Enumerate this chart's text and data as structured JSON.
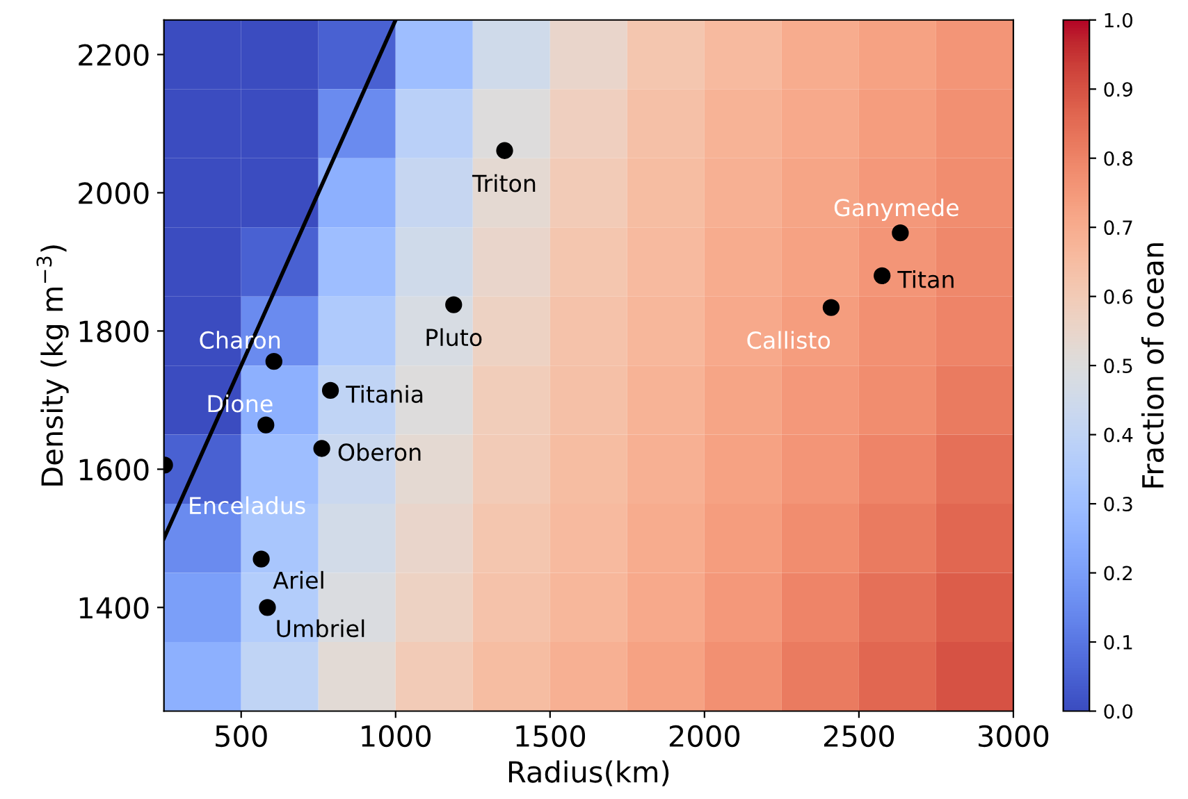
{
  "chart_data": [
    {
      "type": "heatmap",
      "clabel": "Fraction of ocean",
      "clim": [
        0,
        1
      ],
      "cticks": [
        {
          "value": 0,
          "label": "0.0"
        },
        {
          "value": 0.1,
          "label": "0.1"
        },
        {
          "value": 0.2,
          "label": "0.2"
        },
        {
          "value": 0.3,
          "label": "0.3"
        },
        {
          "value": 0.4,
          "label": "0.4"
        },
        {
          "value": 0.5,
          "label": "0.5"
        },
        {
          "value": 0.6,
          "label": "0.6"
        },
        {
          "value": 0.7,
          "label": "0.7"
        },
        {
          "value": 0.8,
          "label": "0.8"
        },
        {
          "value": 0.9,
          "label": "0.9"
        },
        {
          "value": 1,
          "label": "1.0"
        }
      ],
      "categories": [
        null,
        null,
        null,
        null,
        null,
        null,
        null,
        null,
        null,
        null,
        null
      ],
      "y_categories": [
        null,
        null,
        null,
        null,
        null,
        null,
        null,
        null,
        null,
        null
      ],
      "cells": [
        [
          0,
          0,
          0.05,
          0.3,
          0.45,
          0.55,
          0.62,
          0.66,
          0.7,
          0.73,
          0.76
        ],
        [
          0,
          0,
          0.15,
          0.38,
          0.5,
          0.58,
          0.64,
          0.68,
          0.71,
          0.74,
          0.77
        ],
        [
          0,
          0,
          0.25,
          0.42,
          0.53,
          0.6,
          0.65,
          0.69,
          0.72,
          0.75,
          0.78
        ],
        [
          0,
          0.05,
          0.3,
          0.45,
          0.55,
          0.62,
          0.66,
          0.7,
          0.73,
          0.76,
          0.79
        ],
        [
          0,
          0.15,
          0.35,
          0.48,
          0.57,
          0.63,
          0.67,
          0.71,
          0.74,
          0.77,
          0.8
        ],
        [
          0,
          0.25,
          0.4,
          0.5,
          0.59,
          0.64,
          0.68,
          0.72,
          0.75,
          0.78,
          0.82
        ],
        [
          0.05,
          0.3,
          0.43,
          0.53,
          0.6,
          0.65,
          0.69,
          0.73,
          0.76,
          0.8,
          0.84
        ],
        [
          0.15,
          0.33,
          0.46,
          0.55,
          0.62,
          0.66,
          0.7,
          0.74,
          0.78,
          0.82,
          0.86
        ],
        [
          0.2,
          0.36,
          0.49,
          0.57,
          0.63,
          0.67,
          0.71,
          0.75,
          0.8,
          0.84,
          0.88
        ],
        [
          0.25,
          0.4,
          0.52,
          0.6,
          0.65,
          0.69,
          0.73,
          0.77,
          0.82,
          0.86,
          0.9
        ]
      ]
    },
    {
      "type": "scatter",
      "xlabel": "Radius(km)",
      "ylabel": "Density (kg m$^{−3}$)",
      "xlim": [
        250,
        3000
      ],
      "xticks": [
        500,
        1000,
        1500,
        2000,
        2500,
        3000
      ],
      "ylim": [
        1250,
        2250
      ],
      "yticks": [
        1400,
        1600,
        1800,
        2000,
        2200
      ],
      "grid": false,
      "marker": "circle",
      "series": [
        {
          "type": "line",
          "color": "#000000",
          "marker": "none",
          "x": [
            250,
            1000
          ],
          "values": [
            1500,
            2250
          ]
        },
        {
          "color": "#000000",
          "x": [
            252,
            1353,
            2634,
            2575,
            2410,
            1188,
            606,
            789,
            580,
            761,
            565,
            585
          ],
          "values": [
            1606,
            2061,
            1942,
            1880,
            1834,
            1838,
            1756,
            1714,
            1664,
            1630,
            1470,
            1400
          ]
        }
      ],
      "annotations": [
        {
          "text": "Enceladus",
          "x": 252,
          "y": 1606
        },
        {
          "text": "Triton",
          "x": 1353,
          "y": 2061
        },
        {
          "text": "Ganymede",
          "x": 2634,
          "y": 1942
        },
        {
          "text": "Titan",
          "x": 2575,
          "y": 1880
        },
        {
          "text": "Callisto",
          "x": 2410,
          "y": 1834
        },
        {
          "text": "Pluto",
          "x": 1188,
          "y": 1838
        },
        {
          "text": "Charon",
          "x": 606,
          "y": 1756
        },
        {
          "text": "Titania",
          "x": 789,
          "y": 1714
        },
        {
          "text": "Dione",
          "x": 580,
          "y": 1664
        },
        {
          "text": "Oberon",
          "x": 761,
          "y": 1630
        },
        {
          "text": "Ariel",
          "x": 565,
          "y": 1470
        },
        {
          "text": "Umbriel",
          "x": 585,
          "y": 1400
        }
      ]
    }
  ]
}
